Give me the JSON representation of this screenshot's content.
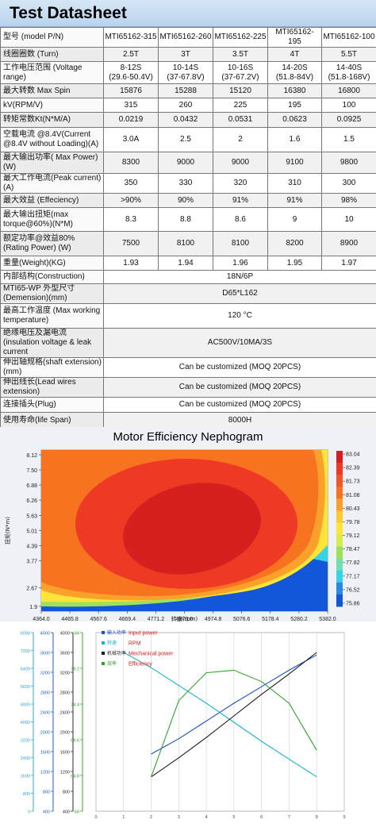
{
  "header": {
    "title": "Test Datasheet"
  },
  "table": {
    "rows": [
      {
        "label": "型号 (model P/N)",
        "values": [
          "MTI65162-315",
          "MTI65162-260",
          "MTI65162-225",
          "MTI65162-195",
          "MTI65162-100"
        ]
      },
      {
        "label": "线圈圈数 (Turn)",
        "values": [
          "2.5T",
          "3T",
          "3.5T",
          "4T",
          "5.5T"
        ]
      },
      {
        "label": "工作电压范围 (Voltage range)",
        "values": [
          "8-12S\n(29.6-50.4V)",
          "10-14S\n(37-67.8V)",
          "10-16S\n(37-67.2V)",
          "14-20S\n(51.8-84V)",
          "14-40S\n(51.8-168V)"
        ]
      },
      {
        "label": "最大转数 Max Spin",
        "values": [
          "15876",
          "15288",
          "15120",
          "16380",
          "16800"
        ]
      },
      {
        "label": "kV(RPM/V)",
        "values": [
          "315",
          "260",
          "225",
          "195",
          "100"
        ]
      },
      {
        "label": "转矩常数Kt(N*M/A)",
        "values": [
          "0.0219",
          "0.0432",
          "0.0531",
          "0.0623",
          "0.0925"
        ]
      },
      {
        "label": "空载电流 @8.4V(Current @8.4V without Loading)(A)",
        "values": [
          "3.0A",
          "2.5",
          "2",
          "1.6",
          "1.5"
        ]
      },
      {
        "label": "最大输出功率( Max Power)(W)",
        "values": [
          "8300",
          "9000",
          "9000",
          "9100",
          "9800"
        ]
      },
      {
        "label": "最大工作电流(Peak current)(A)",
        "values": [
          "350",
          "330",
          "320",
          "310",
          "300"
        ]
      },
      {
        "label": "最大效益 (Effeciency)",
        "values": [
          ">90%",
          "90%",
          "91%",
          "91%",
          "98%"
        ]
      },
      {
        "label": "最大输出扭矩(max torque@60%)(N*M)",
        "values": [
          "8.3",
          "8.8",
          "8.6",
          "9",
          "10"
        ]
      },
      {
        "label": "额定功率@效益80% (Rating Power) (W)",
        "values": [
          "7500",
          "8100",
          "8100",
          "8200",
          "8900"
        ]
      },
      {
        "label": "重量(Weight)(KG)",
        "values": [
          "1.93",
          "1.94",
          "1.96",
          "1.95",
          "1.97"
        ]
      }
    ],
    "merged_rows": [
      {
        "label": "内部结构(Construction)",
        "value": "18N/6P"
      },
      {
        "label": "MTI65-WP 外型尺寸 (Demension)(mm)",
        "value": "D65*L162"
      },
      {
        "label": "最高工作温度 (Max working temperature)",
        "value": "120 °C"
      },
      {
        "label": "绝缘电压及漏电流(insulation voltage & leak current",
        "value": "AC500V/10MA/3S"
      },
      {
        "label": "伸出轴规格(shaft extension)(mm)",
        "value": "Can be customized (MOQ 20PCS)"
      },
      {
        "label": "伸出线长(Lead wires extension)",
        "value": "Can be customized (MOQ 20PCS)"
      },
      {
        "label": "连接插头(Plug)",
        "value": "Can be customized (MOQ 20PCS)"
      },
      {
        "label": "使用寿命(life Span)",
        "value": "8000H"
      }
    ]
  },
  "chart_data": [
    {
      "type": "heatmap",
      "title": "Motor Efficiency Nephogram",
      "xlabel": "转速(rpm)",
      "ylabel": "扭矩(N*m)",
      "x_ticks": [
        "4364.0",
        "4465.8",
        "4567.6",
        "4669.4",
        "4771.2",
        "4873.0",
        "4974.8",
        "5076.6",
        "5178.4",
        "5280.2",
        "5382.0"
      ],
      "y_ticks": [
        "1.9",
        "2.67",
        "3.77",
        "4.39",
        "5.01",
        "5.63",
        "6.26",
        "6.88",
        "7.50",
        "8.12"
      ],
      "colorbar_ticks": [
        "83.04",
        "82.39",
        "81.73",
        "81.08",
        "80.43",
        "79.78",
        "79.12",
        "78.47",
        "77.82",
        "77.17",
        "76.52",
        "75.86"
      ],
      "colors": {
        "core": "#d61f1f",
        "high": "#ee3a24",
        "mid": "#f7731f",
        "midlow": "#f9a12b",
        "yellow": "#ffe53a",
        "green": "#9fe05a",
        "cyan": "#35d2ea",
        "blue": "#1257d9"
      }
    },
    {
      "type": "line",
      "legend": [
        {
          "name": "输入功率",
          "label": "Input power",
          "color": "#1550c8"
        },
        {
          "name": "转速",
          "label": "RPM",
          "color": "#16b0d8"
        },
        {
          "name": "机械功率",
          "label": "Mechanical power",
          "color": "#1a1a1a"
        },
        {
          "name": "效率",
          "label": "Efficiency",
          "color": "#2ea32e"
        }
      ],
      "x": [
        "0",
        "1",
        "2",
        "3",
        "4",
        "5",
        "6",
        "7",
        "8",
        "9"
      ],
      "series": [
        {
          "name": "输入功率",
          "values": [
            null,
            null,
            0.2,
            0.32,
            0.46,
            0.6,
            0.73,
            0.86,
            0.98,
            null
          ]
        },
        {
          "name": "转速",
          "values": [
            null,
            1.0,
            0.88,
            0.74,
            0.6,
            0.45,
            0.3,
            0.16,
            0.02,
            null
          ]
        },
        {
          "name": "机械功率",
          "values": [
            null,
            null,
            0.02,
            0.17,
            0.33,
            0.5,
            0.67,
            0.83,
            1.0,
            null
          ]
        },
        {
          "name": "效率",
          "values": [
            null,
            null,
            0.02,
            0.62,
            0.84,
            0.86,
            0.77,
            0.6,
            0.23,
            null
          ]
        }
      ],
      "left_axes": [
        {
          "color": "#2aa9d9",
          "ticks": [
            "0",
            "800",
            "1600",
            "2400",
            "3200",
            "4000",
            "4800",
            "5600",
            "6400",
            "7200",
            "8000"
          ]
        },
        {
          "color": "#1f5fc9",
          "ticks": [
            "400",
            "800",
            "1200",
            "1600",
            "2000",
            "2400",
            "2800",
            "3200",
            "3600",
            "4000"
          ]
        },
        {
          "color": "#2a2a2a",
          "ticks": [
            "400",
            "800",
            "1200",
            "1600",
            "2000",
            "2400",
            "2800",
            "3200",
            "3600",
            "4000"
          ]
        },
        {
          "color": "#2ea32e",
          "ticks": [
            "60",
            "64.8",
            "69.6",
            "74.4",
            "79.2",
            "84"
          ]
        }
      ]
    }
  ]
}
